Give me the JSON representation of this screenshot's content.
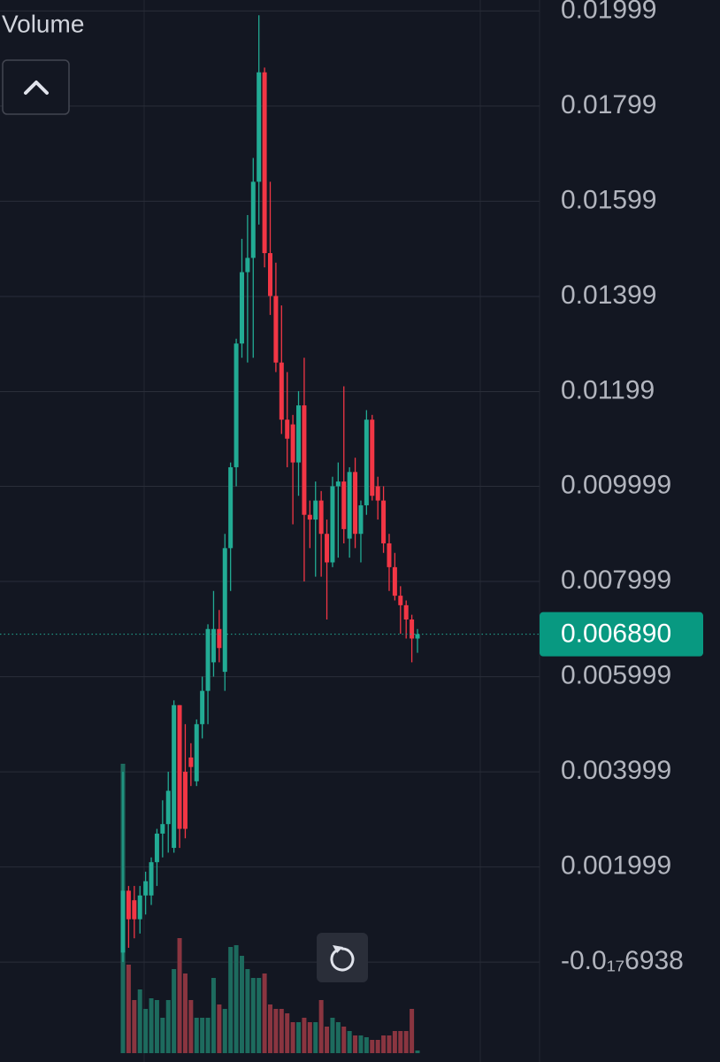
{
  "chart_data": {
    "type": "candlestick",
    "legend_label": "Volume",
    "up_color": "#22ab94",
    "down_color": "#f23645",
    "volume_up_color": "#1d6b5e",
    "volume_down_color": "#8a3540",
    "grid": true,
    "ylim": [
      -0.0021,
      0.02022
    ],
    "yticks": [
      {
        "value": -6.938e-18,
        "label": "-0.0₁₇6938"
      },
      0.001999,
      0.003999,
      0.005999,
      0.007999,
      0.009999,
      0.01199,
      0.01399,
      0.01599,
      0.01799,
      0.01999
    ],
    "last_price": {
      "value": 0.00689,
      "label": "0.006890"
    },
    "open": [
      0.0002,
      0.0015,
      0.0013,
      0.0009,
      0.0014,
      0.0014,
      0.0021,
      0.0027,
      0.0029,
      0.0024,
      0.0054,
      0.004,
      0.0043,
      0.0038,
      0.005,
      0.0057,
      0.0063,
      0.007,
      0.0061,
      0.0087,
      0.0104,
      0.013,
      0.0145,
      0.0148,
      0.0164,
      0.0187,
      0.0149,
      0.014,
      0.0126,
      0.0114,
      0.0113,
      0.0105,
      0.0117,
      0.0094,
      0.0093,
      0.0097,
      0.009,
      0.0084,
      0.01,
      0.0101,
      0.0089,
      0.0103,
      0.009,
      0.0096,
      0.0114,
      0.01,
      0.0097,
      0.0088,
      0.0083,
      0.0077,
      0.0075,
      0.0072,
      0.0068
    ],
    "high": [
      0.004,
      0.0016,
      0.0016,
      0.0016,
      0.0019,
      0.0022,
      0.0028,
      0.0034,
      0.004,
      0.0055,
      0.0054,
      0.005,
      0.0046,
      0.0051,
      0.006,
      0.0071,
      0.0078,
      0.0074,
      0.009,
      0.0105,
      0.0131,
      0.0152,
      0.0157,
      0.0169,
      0.0199,
      0.0188,
      0.0164,
      0.0147,
      0.0138,
      0.0124,
      0.0115,
      0.012,
      0.0127,
      0.0097,
      0.0101,
      0.0099,
      0.0093,
      0.0102,
      0.0105,
      0.0121,
      0.0104,
      0.0106,
      0.0097,
      0.0116,
      0.0115,
      0.0102,
      0.01,
      0.009,
      0.0086,
      0.0079,
      0.0076,
      0.0073,
      0.007
    ],
    "low": [
      0.0,
      0.0003,
      0.0005,
      0.0006,
      0.001,
      0.0012,
      0.0016,
      0.0022,
      0.0023,
      0.0023,
      0.0024,
      0.0026,
      0.0037,
      0.0037,
      0.0047,
      0.005,
      0.006,
      0.0063,
      0.0057,
      0.0078,
      0.01,
      0.0127,
      0.0126,
      0.0127,
      0.0155,
      0.0146,
      0.0136,
      0.0124,
      0.0111,
      0.0104,
      0.0092,
      0.0098,
      0.008,
      0.0087,
      0.0081,
      0.0081,
      0.0072,
      0.0083,
      0.0085,
      0.0088,
      0.0085,
      0.0087,
      0.0084,
      0.0094,
      0.0097,
      0.0093,
      0.0086,
      0.0078,
      0.0076,
      0.0069,
      0.0068,
      0.0063,
      0.0065
    ],
    "close": [
      0.0015,
      0.0009,
      0.0009,
      0.0014,
      0.0017,
      0.0021,
      0.0027,
      0.0029,
      0.0036,
      0.0054,
      0.0028,
      0.0028,
      0.0041,
      0.005,
      0.0057,
      0.007,
      0.007,
      0.0066,
      0.0087,
      0.0104,
      0.013,
      0.0145,
      0.0148,
      0.0164,
      0.0187,
      0.0149,
      0.014,
      0.0126,
      0.0114,
      0.011,
      0.0105,
      0.0117,
      0.0094,
      0.0093,
      0.0097,
      0.009,
      0.0084,
      0.01,
      0.0101,
      0.0091,
      0.0103,
      0.009,
      0.0096,
      0.0114,
      0.0098,
      0.0097,
      0.0088,
      0.0083,
      0.0077,
      0.0075,
      0.0072,
      0.0068,
      0.00689
    ],
    "volume": [
      327,
      100,
      60,
      72,
      50,
      62,
      60,
      40,
      60,
      95,
      130,
      90,
      60,
      40,
      40,
      40,
      85,
      55,
      50,
      120,
      122,
      110,
      95,
      85,
      85,
      90,
      55,
      50,
      50,
      45,
      35,
      35,
      40,
      35,
      35,
      60,
      30,
      40,
      35,
      30,
      25,
      20,
      20,
      18,
      15,
      15,
      20,
      20,
      25,
      25,
      25,
      50,
      3
    ]
  }
}
